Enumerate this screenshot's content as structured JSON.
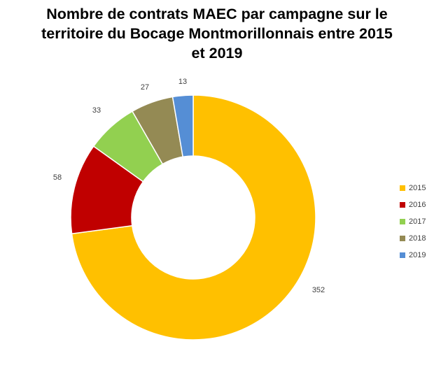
{
  "chart_data": {
    "type": "pie",
    "subtype": "doughnut",
    "title_lines": [
      "Nombre de contrats MAEC par campagne sur le",
      "territoire du Bocage Montmorillonnais entre 2015",
      "et 2019"
    ],
    "categories": [
      "2015",
      "2016",
      "2017",
      "2018",
      "2019"
    ],
    "values": [
      352,
      58,
      33,
      27,
      13
    ],
    "colors": [
      "#FFC000",
      "#C00000",
      "#92D050",
      "#948A54",
      "#558ED5"
    ],
    "data_labels": [
      "352",
      "58",
      "33",
      "27",
      "13"
    ],
    "legend_position": "right"
  }
}
